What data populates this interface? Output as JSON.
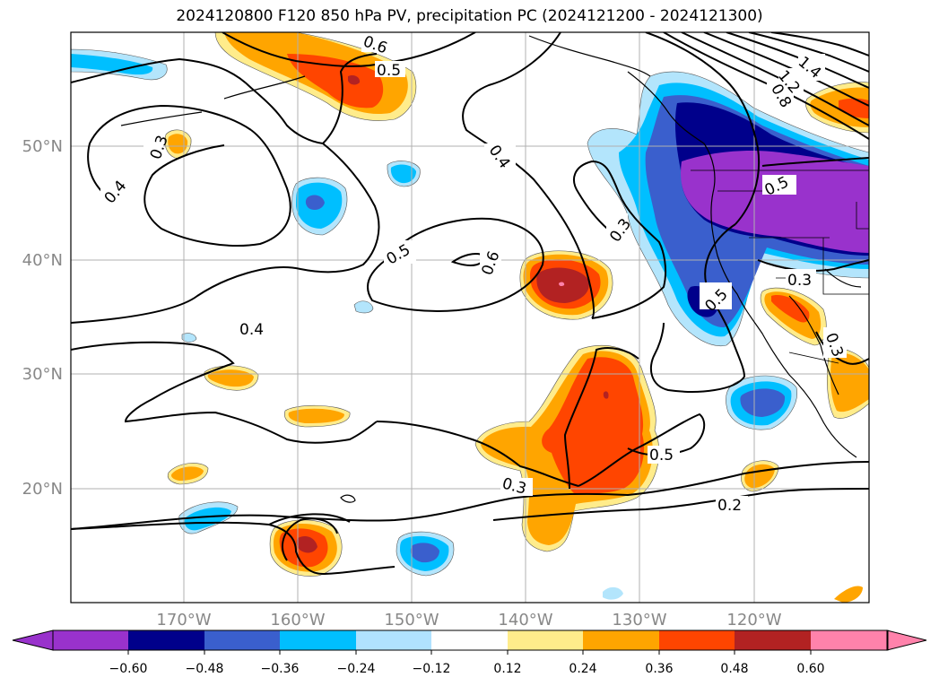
{
  "title": "2024120800 F120 850 hPa PV, precipitation PC (2024121200 - 2024121300)",
  "lat_labels": [
    "50°N",
    "40°N",
    "30°N",
    "20°N"
  ],
  "lon_labels": [
    "170°W",
    "160°W",
    "150°W",
    "140°W",
    "130°W",
    "120°W"
  ],
  "contour_labels": [
    "0.6",
    "0.5",
    "0.3",
    "0.4",
    "0.4",
    "0.5",
    "0.6",
    "0.3",
    "0.4",
    "1.4",
    "1.2",
    "0.8",
    "0.5",
    "0.5",
    "0.3",
    "0.3",
    "0.5",
    "0.3",
    "0.2"
  ],
  "colorbar": {
    "ticks": [
      "−0.60",
      "−0.48",
      "−0.36",
      "−0.24",
      "−0.12",
      "0.12",
      "0.24",
      "0.36",
      "0.48",
      "0.60"
    ],
    "colors": [
      "#9932CC",
      "#00008B",
      "#3A5FCD",
      "#00BFFF",
      "#B0E2FF",
      "#FFFFFF",
      "#FFEC8B",
      "#FFA500",
      "#FF4500",
      "#B22222",
      "#FF82AB"
    ]
  },
  "axis_label_color": "#888888"
}
